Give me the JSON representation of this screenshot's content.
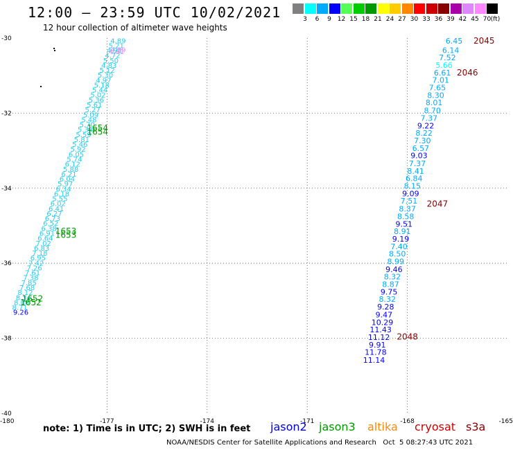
{
  "header": {
    "title": "12:00 — 23:59 UTC 10/02/2021",
    "subtitle": "12 hour collection of altimeter wave heights"
  },
  "legend": {
    "unit": "(ft)",
    "items": [
      {
        "label": "3",
        "color": "#808080"
      },
      {
        "label": "6",
        "color": "#00ffff"
      },
      {
        "label": "9",
        "color": "#00aaff"
      },
      {
        "label": "12",
        "color": "#0000ff"
      },
      {
        "label": "15",
        "color": "#55ff55"
      },
      {
        "label": "18",
        "color": "#00cc00"
      },
      {
        "label": "21",
        "color": "#009900"
      },
      {
        "label": "24",
        "color": "#ffff00"
      },
      {
        "label": "27",
        "color": "#ffcc00"
      },
      {
        "label": "30",
        "color": "#ff8800"
      },
      {
        "label": "33",
        "color": "#ff0000"
      },
      {
        "label": "36",
        "color": "#cc0000"
      },
      {
        "label": "39",
        "color": "#880000"
      },
      {
        "label": "42",
        "color": "#aa00aa"
      },
      {
        "label": "45",
        "color": "#dd88ff"
      },
      {
        "label": "70",
        "color": "#ff88ff"
      },
      {
        "label": "",
        "color": "#000000"
      }
    ]
  },
  "footer": {
    "note": "note: 1) Time is in UTC; 2) SWH is in feet",
    "credit": "NOAA/NESDIS Center for Satellite Applications and Research   Oct  5 08:27:43 UTC 2021",
    "satellites": [
      {
        "name": "jason2",
        "color": "#0000dd"
      },
      {
        "name": "jason3",
        "color": "#009900"
      },
      {
        "name": "altika",
        "color": "#ff8800"
      },
      {
        "name": "cryosat",
        "color": "#cc0000"
      },
      {
        "name": "s3a",
        "color": "#880000"
      }
    ]
  },
  "chart_data": {
    "type": "scatter",
    "xlim": [
      -180,
      -165
    ],
    "ylim": [
      -40,
      -30
    ],
    "x_ticks": [
      "-180",
      "-177",
      "-174",
      "-171",
      "-168",
      "-165"
    ],
    "y_ticks": [
      "-30",
      "-32",
      "-34",
      "-36",
      "-38",
      "-40"
    ],
    "grid": true,
    "right_track": {
      "points": [
        {
          "lon": -166.6,
          "lat": -30.07,
          "swh": "6.45",
          "color": "#00aaff"
        },
        {
          "lon": -166.7,
          "lat": -30.32,
          "swh": "6.14",
          "color": "#00aaff"
        },
        {
          "lon": -166.8,
          "lat": -30.52,
          "swh": "7.52",
          "color": "#00aaff"
        },
        {
          "lon": -166.9,
          "lat": -30.72,
          "swh": "5.66",
          "color": "#00ffff"
        },
        {
          "lon": -166.95,
          "lat": -30.92,
          "swh": "6.61",
          "color": "#00aaff"
        },
        {
          "lon": -167.0,
          "lat": -31.12,
          "swh": "7.01",
          "color": "#00aaff"
        },
        {
          "lon": -167.1,
          "lat": -31.32,
          "swh": "7.65",
          "color": "#00aaff"
        },
        {
          "lon": -167.15,
          "lat": -31.52,
          "swh": "8.30",
          "color": "#00aaff"
        },
        {
          "lon": -167.2,
          "lat": -31.72,
          "swh": "8.01",
          "color": "#00aaff"
        },
        {
          "lon": -167.25,
          "lat": -31.93,
          "swh": "8.70",
          "color": "#00aaff"
        },
        {
          "lon": -167.35,
          "lat": -32.13,
          "swh": "7.37",
          "color": "#00aaff"
        },
        {
          "lon": -167.45,
          "lat": -32.33,
          "swh": "9.22",
          "color": "#0000ff"
        },
        {
          "lon": -167.5,
          "lat": -32.53,
          "swh": "8.22",
          "color": "#00aaff"
        },
        {
          "lon": -167.55,
          "lat": -32.73,
          "swh": "7.30",
          "color": "#00aaff"
        },
        {
          "lon": -167.6,
          "lat": -32.93,
          "swh": "6.57",
          "color": "#00aaff"
        },
        {
          "lon": -167.65,
          "lat": -33.13,
          "swh": "9.03",
          "color": "#0000ff"
        },
        {
          "lon": -167.7,
          "lat": -33.34,
          "swh": "7.37",
          "color": "#00aaff"
        },
        {
          "lon": -167.75,
          "lat": -33.54,
          "swh": "8.41",
          "color": "#00aaff"
        },
        {
          "lon": -167.8,
          "lat": -33.74,
          "swh": "6.84",
          "color": "#00aaff"
        },
        {
          "lon": -167.85,
          "lat": -33.94,
          "swh": "8.15",
          "color": "#00aaff"
        },
        {
          "lon": -167.9,
          "lat": -34.14,
          "swh": "9.09",
          "color": "#0000ff"
        },
        {
          "lon": -167.95,
          "lat": -34.34,
          "swh": "7.51",
          "color": "#00aaff"
        },
        {
          "lon": -168.0,
          "lat": -34.55,
          "swh": "8.37",
          "color": "#00aaff"
        },
        {
          "lon": -168.05,
          "lat": -34.75,
          "swh": "8.58",
          "color": "#00aaff"
        },
        {
          "lon": -168.1,
          "lat": -34.95,
          "swh": "9.51",
          "color": "#0000ff"
        },
        {
          "lon": -168.15,
          "lat": -35.15,
          "swh": "8.91",
          "color": "#00aaff"
        },
        {
          "lon": -168.2,
          "lat": -35.35,
          "swh": "9.19",
          "color": "#0000ff"
        },
        {
          "lon": -168.25,
          "lat": -35.55,
          "swh": "7.40",
          "color": "#00aaff"
        },
        {
          "lon": -168.3,
          "lat": -35.75,
          "swh": "8.50",
          "color": "#00aaff"
        },
        {
          "lon": -168.35,
          "lat": -35.95,
          "swh": "8.99",
          "color": "#00aaff"
        },
        {
          "lon": -168.4,
          "lat": -36.16,
          "swh": "9.46",
          "color": "#0000ff"
        },
        {
          "lon": -168.45,
          "lat": -36.36,
          "swh": "8.32",
          "color": "#00aaff"
        },
        {
          "lon": -168.5,
          "lat": -36.56,
          "swh": "8.87",
          "color": "#00aaff"
        },
        {
          "lon": -168.55,
          "lat": -36.76,
          "swh": "9.75",
          "color": "#0000ff"
        },
        {
          "lon": -168.6,
          "lat": -36.96,
          "swh": "8.32",
          "color": "#00aaff"
        },
        {
          "lon": -168.65,
          "lat": -37.16,
          "swh": "9.28",
          "color": "#0000ff"
        },
        {
          "lon": -168.7,
          "lat": -37.37,
          "swh": "9.47",
          "color": "#0000ff"
        },
        {
          "lon": -168.75,
          "lat": -37.57,
          "swh": "10.29",
          "color": "#0000ff"
        },
        {
          "lon": -168.8,
          "lat": -37.77,
          "swh": "11.43",
          "color": "#0000ff"
        },
        {
          "lon": -168.85,
          "lat": -37.97,
          "swh": "11.12",
          "color": "#0000ff"
        },
        {
          "lon": -168.9,
          "lat": -38.17,
          "swh": "9.91",
          "color": "#0000ff"
        },
        {
          "lon": -168.95,
          "lat": -38.37,
          "swh": "11.78",
          "color": "#0000ff"
        },
        {
          "lon": -169.0,
          "lat": -38.58,
          "swh": "11.14",
          "color": "#0000ff"
        }
      ],
      "time_labels": [
        {
          "lon": -165.7,
          "lat": -30.07,
          "text": "2045"
        },
        {
          "lon": -166.2,
          "lat": -30.92,
          "text": "2046"
        },
        {
          "lon": -167.1,
          "lat": -34.42,
          "text": "2047"
        },
        {
          "lon": -168.0,
          "lat": -37.96,
          "text": "2048"
        }
      ],
      "time_color": "#880000"
    },
    "left_track": {
      "start": {
        "lon": -176.65,
        "lat": -30.06
      },
      "end": {
        "lon": -179.65,
        "lat": -37.3
      },
      "count": 56,
      "values": [
        "4.89",
        "5.21",
        "4.91",
        "4.72",
        "5.50",
        "4.83",
        "5.12",
        "5.30",
        "4.97",
        "5.18",
        "5.44",
        "5.02",
        "5.36",
        "5.61",
        "5.27",
        "5.09",
        "5.48",
        "5.70",
        "5.33",
        "5.59",
        "5.81",
        "5.46",
        "5.92",
        "6.05",
        "5.74",
        "6.12",
        "5.88",
        "6.21",
        "6.04",
        "5.97",
        "6.34",
        "6.18",
        "5.55",
        "6.02",
        "6.41",
        "6.27",
        "6.73",
        "6.52",
        "6.38",
        "6.91",
        "6.64",
        "7.02",
        "6.83",
        "7.18",
        "6.95",
        "7.42",
        "7.26",
        "7.61",
        "7.38",
        "7.85",
        "7.68",
        "8.12",
        "8.34",
        "8.06",
        "8.71",
        "9.26"
      ],
      "color": "#22ccee",
      "last_value_color": "#0000ff",
      "pink_labels": [
        {
          "lon": -176.9,
          "lat": -30.3,
          "text": "4.89"
        },
        {
          "lon": -176.95,
          "lat": -30.35,
          "text": "4.91"
        }
      ],
      "pink_color": "#dd88ff",
      "time_labels": [
        {
          "lon": -177.6,
          "lat": -32.4,
          "text": "1654"
        },
        {
          "lon": -177.6,
          "lat": -32.5,
          "text": "1654"
        },
        {
          "lon": -178.55,
          "lat": -35.15,
          "text": "1653"
        },
        {
          "lon": -178.55,
          "lat": -35.25,
          "text": "1653"
        },
        {
          "lon": -179.55,
          "lat": -36.95,
          "text": "1652"
        },
        {
          "lon": -179.6,
          "lat": -37.05,
          "text": "1652"
        }
      ],
      "time_color": "#009900"
    }
  }
}
